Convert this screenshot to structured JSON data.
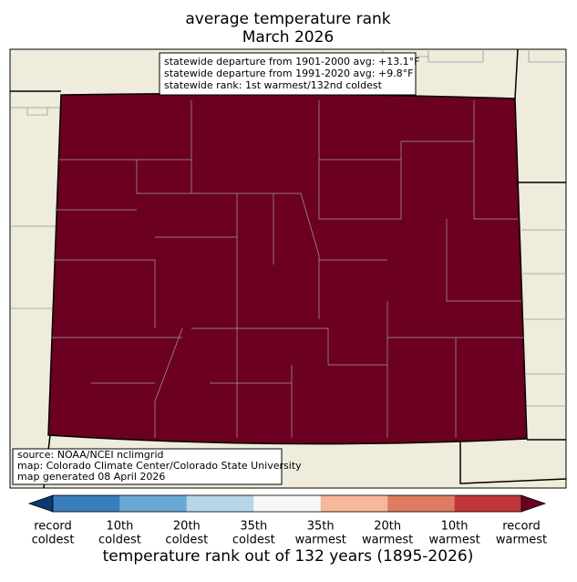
{
  "title": [
    "average temperature rank",
    "March 2026"
  ],
  "info_box": [
    "statewide departure from 1901-2000 avg: +13.1°F",
    "statewide departure from 1991-2020 avg: +9.8°F",
    "statewide rank: 1st warmest/132nd coldest"
  ],
  "source_box": [
    "source: NOAA/NCEI nclimgrid",
    "map: Colorado Climate Center/Colorado State University",
    "map generated 08 April 2026"
  ],
  "colorbar": {
    "colors": [
      "#0a3a70",
      "#3a7dbd",
      "#6aa9d3",
      "#b6d6e9",
      "#f6f6f6",
      "#f7b79b",
      "#df7b61",
      "#c0373a",
      "#6b0021"
    ],
    "ticks": [
      [
        "record",
        "coldest"
      ],
      [
        "10th",
        "coldest"
      ],
      [
        "20th",
        "coldest"
      ],
      [
        "35th",
        "coldest"
      ],
      [
        "35th",
        "warmest"
      ],
      [
        "20th",
        "warmest"
      ],
      [
        "10th",
        "warmest"
      ],
      [
        "record",
        "warmest"
      ]
    ],
    "label": "temperature rank out of 132 years (1895-2026)"
  }
}
